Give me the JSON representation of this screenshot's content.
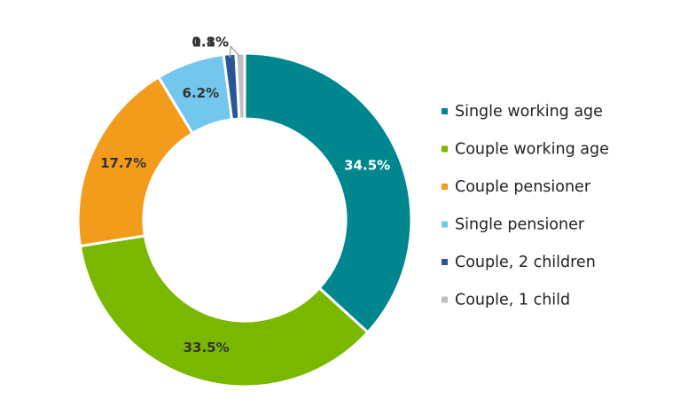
{
  "chart_data": {
    "type": "pie",
    "donut": true,
    "categories": [
      "Single working age",
      "Couple working age",
      "Couple pensioner",
      "Single pensioner",
      "Couple, 2 children",
      "Couple, 1 child"
    ],
    "values": [
      34.5,
      33.5,
      17.7,
      6.2,
      1.1,
      0.8
    ],
    "data_labels": [
      "34.5%",
      "33.5%",
      "17.7%",
      "6.2%",
      "1.1%",
      "0.8%"
    ],
    "colors": [
      "#00868f",
      "#7ab800",
      "#f39c1c",
      "#73c7ec",
      "#2a5597",
      "#c0c0c0"
    ],
    "label_colors": [
      "#ffffff",
      "#333333",
      "#333333",
      "#333333",
      "#333333",
      "#333333"
    ],
    "legend_position": "right",
    "title": "",
    "xlabel": "",
    "ylabel": ""
  }
}
